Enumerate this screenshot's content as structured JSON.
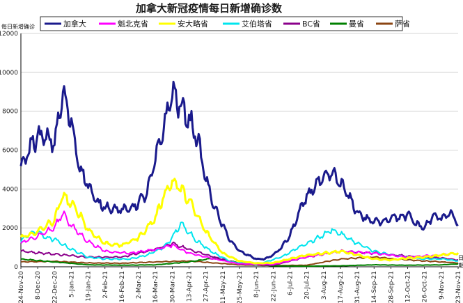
{
  "chart_data": {
    "type": "line",
    "title": "加拿大新冠疫情每日新增确诊数",
    "ylabel": "每日新增确诊",
    "xlabel": "日期",
    "ylim": [
      0,
      12000
    ],
    "yticks": [
      0,
      2000,
      4000,
      6000,
      8000,
      10000,
      12000
    ],
    "grid": "horizontal",
    "legend_position": "top",
    "x_start": "24-Nov-20",
    "x_end": "23-Nov-21",
    "x_ticks": [
      "24-Nov-20",
      "8-Dec-20",
      "22-Dec-20",
      "5-Jan-21",
      "19-Jan-21",
      "2-Feb-21",
      "16-Feb-21",
      "2-Mar-21",
      "16-Mar-21",
      "30-Mar-21",
      "13-Apr-21",
      "27-Apr-21",
      "11-May-21",
      "25-May-21",
      "8-Jun-21",
      "22-Jun-21",
      "6-Jul-21",
      "20-Jul-21",
      "3-Aug-21",
      "17-Aug-21",
      "31-Aug-21",
      "14-Sep-21",
      "28-Sep-21",
      "12-Oct-21",
      "26-Oct-21",
      "9-Nov-21",
      "23-Nov-21"
    ],
    "series": [
      {
        "name": "加拿大",
        "color": "#1a1a8c",
        "width": 3,
        "x": [
          0,
          7,
          14,
          21,
          28,
          35,
          42,
          49,
          56,
          63,
          70,
          77,
          84,
          91,
          98,
          105,
          112,
          119,
          126,
          133,
          140,
          147,
          154,
          161,
          168,
          175,
          182,
          189,
          196,
          203,
          210,
          217,
          224,
          231,
          238,
          245,
          252,
          259,
          266,
          273,
          280,
          287,
          294,
          304,
          310,
          317,
          322,
          329,
          336,
          343,
          350,
          357,
          364
        ],
        "values": [
          5000,
          6100,
          6700,
          6600,
          6400,
          8900,
          7400,
          5100,
          4200,
          3300,
          3100,
          3000,
          2900,
          3000,
          3300,
          3800,
          5500,
          7200,
          9000,
          8200,
          7600,
          6600,
          4500,
          3100,
          2100,
          1300,
          800,
          600,
          400,
          400,
          600,
          1000,
          1600,
          2700,
          3600,
          4200,
          4500,
          4800,
          4300,
          3600,
          2800,
          2500,
          2300,
          2400,
          2600,
          2500,
          2700,
          2200,
          2000,
          2600,
          2500,
          2800,
          2200
        ]
      },
      {
        "name": "魁北克省",
        "color": "#ff00ff",
        "width": 2,
        "x": [
          0,
          14,
          28,
          35,
          42,
          56,
          70,
          91,
          112,
          126,
          140,
          161,
          182,
          210,
          238,
          266,
          294,
          322,
          350,
          364
        ],
        "values": [
          1200,
          1600,
          2000,
          2800,
          2100,
          1300,
          800,
          700,
          900,
          1100,
          700,
          400,
          150,
          120,
          500,
          800,
          700,
          500,
          600,
          700
        ]
      },
      {
        "name": "安大略省",
        "color": "#ffff00",
        "width": 3,
        "x": [
          0,
          14,
          28,
          35,
          42,
          49,
          56,
          70,
          84,
          98,
          112,
          119,
          126,
          133,
          140,
          147,
          154,
          168,
          182,
          196,
          210,
          224,
          238,
          252,
          266,
          280,
          294,
          308,
          322,
          336,
          350,
          364
        ],
        "values": [
          1500,
          1800,
          2400,
          3700,
          3200,
          2700,
          1900,
          1200,
          1100,
          1500,
          2500,
          3700,
          4400,
          4000,
          3400,
          2600,
          1800,
          700,
          300,
          180,
          200,
          400,
          600,
          700,
          800,
          600,
          400,
          350,
          450,
          500,
          600,
          700
        ]
      },
      {
        "name": "艾伯塔省",
        "color": "#00e5ee",
        "width": 2,
        "x": [
          0,
          7,
          14,
          21,
          28,
          42,
          56,
          70,
          91,
          105,
          119,
          126,
          133,
          140,
          147,
          161,
          175,
          196,
          217,
          231,
          245,
          259,
          266,
          280,
          294,
          308,
          322,
          336,
          350,
          364
        ],
        "values": [
          1300,
          1700,
          1800,
          1500,
          1400,
          900,
          500,
          400,
          400,
          600,
          1000,
          1500,
          2200,
          1800,
          1300,
          700,
          250,
          100,
          500,
          1000,
          1400,
          1900,
          1700,
          1200,
          800,
          600,
          500,
          400,
          400,
          300
        ]
      },
      {
        "name": "BC省",
        "color": "#8b008b",
        "width": 2,
        "x": [
          0,
          28,
          56,
          84,
          112,
          126,
          140,
          161,
          182,
          210,
          238,
          266,
          294,
          322,
          350,
          364
        ],
        "values": [
          800,
          650,
          500,
          500,
          900,
          1200,
          900,
          500,
          150,
          80,
          500,
          800,
          700,
          550,
          450,
          350
        ]
      },
      {
        "name": "曼省",
        "color": "#008000",
        "width": 2,
        "x": [
          0,
          28,
          56,
          84,
          112,
          140,
          161,
          182,
          210,
          238,
          266,
          294,
          322,
          350,
          364
        ],
        "values": [
          400,
          250,
          100,
          80,
          100,
          250,
          450,
          200,
          50,
          30,
          50,
          100,
          80,
          100,
          150
        ]
      },
      {
        "name": "萨省",
        "color": "#8b4513",
        "width": 2,
        "x": [
          0,
          28,
          56,
          84,
          112,
          140,
          161,
          182,
          210,
          238,
          266,
          294,
          322,
          350,
          364
        ],
        "values": [
          250,
          280,
          200,
          180,
          250,
          300,
          200,
          100,
          60,
          80,
          400,
          500,
          350,
          250,
          200
        ]
      }
    ]
  }
}
